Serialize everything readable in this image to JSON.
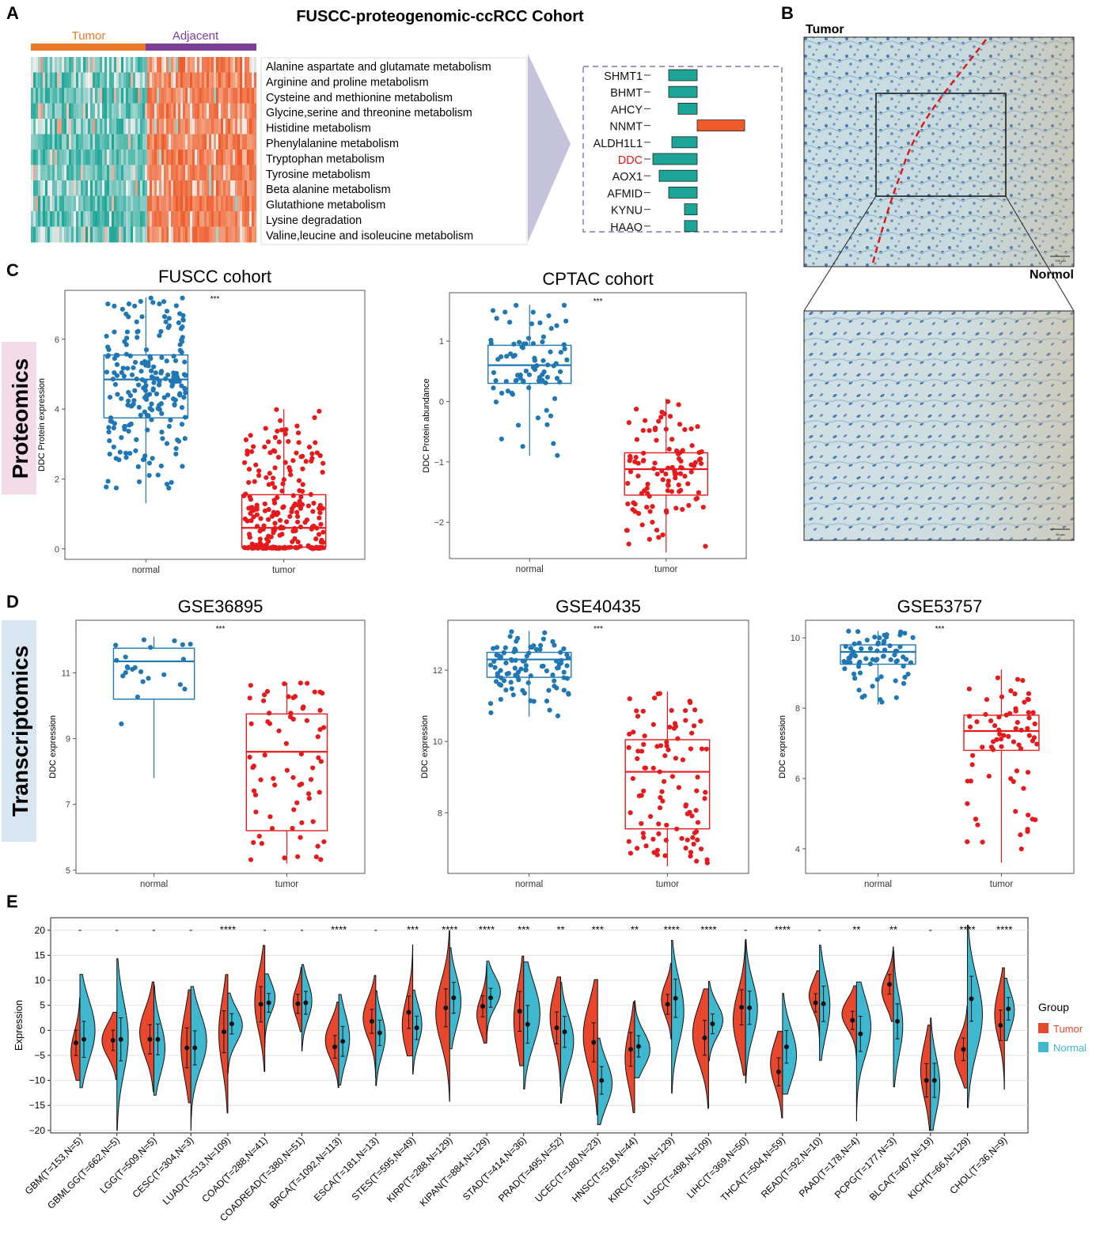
{
  "figure": {
    "panel_letters": {
      "A": "A",
      "B": "B",
      "C": "C",
      "D": "D",
      "E": "E"
    },
    "colors": {
      "normal": "#1f77b4",
      "tumor": "#e41a1c",
      "teal": "#1aa596",
      "orange": "#ee5a2a",
      "tumor_bar": "#e87a2a",
      "adjacent_bar": "#7b3f97",
      "violin_tumor": "#e8472e",
      "violin_normal": "#3fb8cf"
    }
  },
  "panel_a": {
    "title": "FUSCC-proteogenomic-ccRCC Cohort",
    "group_labels": [
      "Tumor",
      "Adjacent"
    ],
    "pathways": [
      "Alanine aspartate and glutamate metabolism",
      "Arginine and proline metabolism",
      "Cysteine and methionine metabolism",
      "Glycine,serine and threonine metabolism",
      "Histidine metabolism",
      "Phenylalanine metabolism",
      "Tryptophan metabolism",
      "Tyrosine metabolism",
      "Beta alanine metabolism",
      "Glutathione metabolism",
      "Lysine degradation",
      "Valine,leucine and isoleucine metabolism"
    ],
    "genes": [
      "SHMT1",
      "BHMT",
      "AHCY",
      "NNMT",
      "ALDH1L1",
      "DDC",
      "AOX1",
      "AFMID",
      "KYNU",
      "HAAO"
    ],
    "highlight_gene": "DDC",
    "fold_changes": [
      -0.9,
      -0.9,
      -0.6,
      1.5,
      -0.8,
      -1.4,
      -1.2,
      -0.9,
      -0.4,
      -0.4
    ]
  },
  "panel_b": {
    "label_tumor": "Tumor",
    "label_normal": "Normol",
    "scale_top": "100 μm",
    "scale_bottom": "50 μm"
  },
  "section_labels": {
    "proteomics": "Proteomics",
    "transcriptomics": "Transcriptomics"
  },
  "chart_data": [
    {
      "type": "box",
      "id": "fuscc",
      "title": "FUSCC cohort",
      "ylabel": "DDC Protein expression",
      "categories": [
        "normal",
        "tumor"
      ],
      "sig": "***",
      "ylim": [
        -0.3,
        7.4
      ],
      "yticks": [
        0,
        2,
        4,
        6
      ],
      "box": [
        {
          "min": 1.3,
          "q1": 3.75,
          "median": 4.85,
          "q3": 5.55,
          "max": 7.2
        },
        {
          "min": 0.0,
          "q1": 0.05,
          "median": 0.6,
          "q3": 1.55,
          "max": 4.0
        }
      ],
      "n": [
        220,
        240
      ]
    },
    {
      "type": "box",
      "id": "cptac",
      "title": "CPTAC cohort",
      "ylabel": "DDC Protein abundance",
      "categories": [
        "normal",
        "tumor"
      ],
      "sig": "***",
      "ylim": [
        -2.6,
        1.8
      ],
      "yticks": [
        -2,
        -1,
        0,
        1
      ],
      "box": [
        {
          "min": -0.9,
          "q1": 0.3,
          "median": 0.6,
          "q3": 0.93,
          "max": 1.6
        },
        {
          "min": -2.5,
          "q1": -1.55,
          "median": -1.12,
          "q3": -0.85,
          "max": 0.05
        }
      ],
      "n": [
        85,
        110
      ]
    },
    {
      "type": "box",
      "id": "gse36895",
      "title": "GSE36895",
      "ylabel": "DDC expression",
      "categories": [
        "normal",
        "tumor"
      ],
      "sig": "***",
      "ylim": [
        4.9,
        12.6
      ],
      "yticks": [
        5,
        7,
        9,
        11
      ],
      "box": [
        {
          "min": 7.8,
          "q1": 10.2,
          "median": 11.35,
          "q3": 11.75,
          "max": 12.1
        },
        {
          "min": 5.2,
          "q1": 6.2,
          "median": 8.6,
          "q3": 9.75,
          "max": 10.7
        }
      ],
      "n": [
        23,
        70
      ]
    },
    {
      "type": "box",
      "id": "gse40435",
      "title": "GSE40435",
      "ylabel": "DDC expression",
      "categories": [
        "normal",
        "tumor"
      ],
      "sig": "***",
      "ylim": [
        6.3,
        13.4
      ],
      "yticks": [
        8,
        10,
        12
      ],
      "box": [
        {
          "min": 10.7,
          "q1": 11.8,
          "median": 12.3,
          "q3": 12.5,
          "max": 13.1
        },
        {
          "min": 6.5,
          "q1": 7.55,
          "median": 9.15,
          "q3": 10.05,
          "max": 11.4
        }
      ],
      "n": [
        100,
        100
      ]
    },
    {
      "type": "box",
      "id": "gse53757",
      "title": "GSE53757",
      "ylabel": "DDC expression",
      "categories": [
        "normal",
        "tumor"
      ],
      "sig": "***",
      "ylim": [
        3.3,
        10.5
      ],
      "yticks": [
        4,
        6,
        8,
        10
      ],
      "box": [
        {
          "min": 8.1,
          "q1": 9.25,
          "median": 9.6,
          "q3": 9.8,
          "max": 10.2
        },
        {
          "min": 3.6,
          "q1": 6.8,
          "median": 7.35,
          "q3": 7.8,
          "max": 9.1
        }
      ],
      "n": [
        72,
        72
      ]
    },
    {
      "type": "violin",
      "id": "pancancer",
      "ylabel": "Expression",
      "ylim": [
        -20.5,
        22.5
      ],
      "yticks": [
        -20,
        -15,
        -10,
        -5,
        0,
        5,
        10,
        15,
        20
      ],
      "legend_title": "Group",
      "legend": [
        "Tumor",
        "Normal"
      ],
      "categories": [
        {
          "label": "GBM(T=153,N=5)",
          "sig": "-",
          "t": -2.5,
          "n": -1.8
        },
        {
          "label": "GBMLGG(T=662,N=5)",
          "sig": "-",
          "t": -2.0,
          "n": -1.8
        },
        {
          "label": "LGG(T=509,N=5)",
          "sig": "-",
          "t": -1.8,
          "n": -1.8
        },
        {
          "label": "CESC(T=304,N=3)",
          "sig": "-",
          "t": -3.5,
          "n": -3.5
        },
        {
          "label": "LUAD(T=513,N=109)",
          "sig": "****",
          "t": -0.3,
          "n": 1.3
        },
        {
          "label": "COAD(T=288,N=41)",
          "sig": "-",
          "t": 5.2,
          "n": 5.5
        },
        {
          "label": "COADREAD(T=380,N=51)",
          "sig": "-",
          "t": 5.3,
          "n": 5.5
        },
        {
          "label": "BRCA(T=1092,N=113)",
          "sig": "****",
          "t": -3.3,
          "n": -2.2
        },
        {
          "label": "ESCA(T=181,N=13)",
          "sig": "-",
          "t": 1.8,
          "n": -0.5
        },
        {
          "label": "STES(T=595,N=49)",
          "sig": "***",
          "t": 3.6,
          "n": 0.5
        },
        {
          "label": "KIRP(T=288,N=129)",
          "sig": "****",
          "t": 4.5,
          "n": 6.5
        },
        {
          "label": "KIPAN(T=884,N=129)",
          "sig": "****",
          "t": 4.8,
          "n": 6.5
        },
        {
          "label": "STAD(T=414,N=36)",
          "sig": "***",
          "t": 3.8,
          "n": 1.2
        },
        {
          "label": "PRAD(T=495,N=52)",
          "sig": "**",
          "t": 0.5,
          "n": -0.3
        },
        {
          "label": "UCEC(T=180,N=23)",
          "sig": "***",
          "t": -2.4,
          "n": -10.0
        },
        {
          "label": "HNSC(T=518,N=44)",
          "sig": "**",
          "t": -3.8,
          "n": -3.2
        },
        {
          "label": "KIRC(T=530,N=129)",
          "sig": "****",
          "t": 5.2,
          "n": 6.4
        },
        {
          "label": "LUSC(T=498,N=109)",
          "sig": "****",
          "t": -1.5,
          "n": 1.3
        },
        {
          "label": "LIHC(T=369,N=50)",
          "sig": "-",
          "t": 4.6,
          "n": 4.5
        },
        {
          "label": "THCA(T=504,N=59)",
          "sig": "****",
          "t": -8.3,
          "n": -3.3
        },
        {
          "label": "READ(T=92,N=10)",
          "sig": "-",
          "t": 5.5,
          "n": 5.3
        },
        {
          "label": "PAAD(T=178,N=4)",
          "sig": "**",
          "t": 2.0,
          "n": -0.7
        },
        {
          "label": "PCPG(T=177,N=3)",
          "sig": "**",
          "t": 9.2,
          "n": 1.8
        },
        {
          "label": "BLCA(T=407,N=19)",
          "sig": "-",
          "t": -10.0,
          "n": -10.0
        },
        {
          "label": "KICH(T=66,N=129)",
          "sig": "****",
          "t": -3.8,
          "n": 6.3
        },
        {
          "label": "CHOL(T=36,N=9)",
          "sig": "****",
          "t": 1.0,
          "n": 4.3
        }
      ]
    }
  ]
}
